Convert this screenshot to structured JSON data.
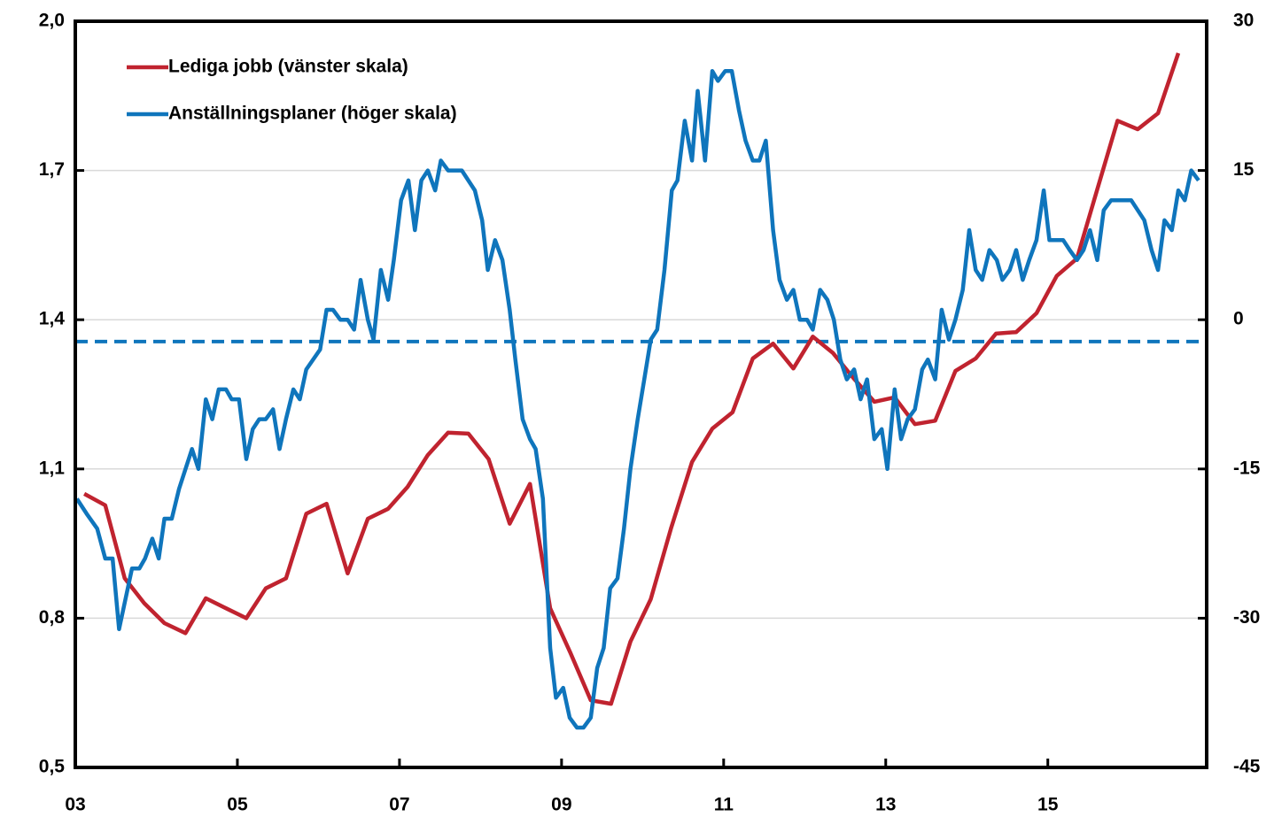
{
  "chart_data": {
    "type": "line",
    "series": [
      {
        "name": "Lediga jobb (vänster skala)",
        "color": "#c0232f",
        "axis": "y",
        "x": [
          2003.11,
          2003.37,
          2003.61,
          2003.85,
          2004.1,
          2004.36,
          2004.61,
          2004.86,
          2005.11,
          2005.35,
          2005.6,
          2005.85,
          2006.1,
          2006.36,
          2006.61,
          2006.86,
          2007.1,
          2007.35,
          2007.6,
          2007.85,
          2008.1,
          2008.36,
          2008.61,
          2008.86,
          2009.11,
          2009.36,
          2009.61,
          2009.85,
          2010.1,
          2010.35,
          2010.61,
          2010.86,
          2011.11,
          2011.36,
          2011.61,
          2011.86,
          2012.1,
          2012.35,
          2012.6,
          2012.86,
          2013.11,
          2013.36,
          2013.61,
          2013.86,
          2014.11,
          2014.36,
          2014.61,
          2014.86,
          2015.11,
          2015.36,
          2015.61,
          2015.86,
          2016.11,
          2016.36,
          2016.61
        ],
        "values": [
          1.05,
          1.027,
          0.88,
          0.83,
          0.79,
          0.77,
          0.84,
          0.82,
          0.8,
          0.86,
          0.88,
          1.01,
          1.03,
          0.89,
          1.0,
          1.02,
          1.064,
          1.128,
          1.173,
          1.171,
          1.12,
          0.99,
          1.07,
          0.82,
          0.73,
          0.635,
          0.628,
          0.753,
          0.838,
          0.98,
          1.114,
          1.181,
          1.214,
          1.322,
          1.352,
          1.302,
          1.366,
          1.333,
          1.283,
          1.235,
          1.244,
          1.19,
          1.197,
          1.297,
          1.322,
          1.372,
          1.375,
          1.413,
          1.488,
          1.523,
          1.662,
          1.8,
          1.783,
          1.815,
          1.936
        ]
      },
      {
        "name": "Anställningsplaner (höger skala)",
        "color": "#0f75bc",
        "axis": "y2",
        "x": [
          2003.02,
          2003.14,
          2003.27,
          2003.37,
          2003.46,
          2003.54,
          2003.7,
          2003.79,
          2003.86,
          2003.95,
          2004.03,
          2004.1,
          2004.19,
          2004.28,
          2004.44,
          2004.52,
          2004.61,
          2004.69,
          2004.77,
          2004.86,
          2004.93,
          2005.02,
          2005.11,
          2005.19,
          2005.27,
          2005.35,
          2005.44,
          2005.52,
          2005.6,
          2005.69,
          2005.77,
          2005.85,
          2006.02,
          2006.1,
          2006.18,
          2006.27,
          2006.36,
          2006.44,
          2006.52,
          2006.61,
          2006.68,
          2006.77,
          2006.86,
          2006.93,
          2007.02,
          2007.11,
          2007.19,
          2007.27,
          2007.35,
          2007.44,
          2007.51,
          2007.6,
          2007.77,
          2007.93,
          2008.02,
          2008.09,
          2008.18,
          2008.27,
          2008.36,
          2008.43,
          2008.52,
          2008.61,
          2008.68,
          2008.77,
          2008.86,
          2008.93,
          2009.02,
          2009.1,
          2009.19,
          2009.27,
          2009.36,
          2009.44,
          2009.52,
          2009.6,
          2009.69,
          2009.77,
          2009.85,
          2009.94,
          2010.02,
          2010.1,
          2010.18,
          2010.27,
          2010.36,
          2010.43,
          2010.52,
          2010.61,
          2010.68,
          2010.77,
          2010.86,
          2010.93,
          2011.02,
          2011.1,
          2011.19,
          2011.27,
          2011.36,
          2011.44,
          2011.52,
          2011.61,
          2011.69,
          2011.78,
          2011.86,
          2011.94,
          2012.03,
          2012.1,
          2012.19,
          2012.28,
          2012.36,
          2012.44,
          2012.52,
          2012.61,
          2012.69,
          2012.77,
          2012.86,
          2012.95,
          2013.02,
          2013.11,
          2013.19,
          2013.27,
          2013.36,
          2013.45,
          2013.52,
          2013.61,
          2013.69,
          2013.78,
          2013.86,
          2013.95,
          2014.03,
          2014.11,
          2014.19,
          2014.28,
          2014.37,
          2014.44,
          2014.53,
          2014.61,
          2014.69,
          2014.77,
          2014.86,
          2014.95,
          2015.02,
          2015.19,
          2015.27,
          2015.36,
          2015.44,
          2015.52,
          2015.61,
          2015.69,
          2015.78,
          2016.03,
          2016.19,
          2016.28,
          2016.36,
          2016.44,
          2016.53,
          2016.61,
          2016.69,
          2016.77,
          2016.86
        ],
        "values": [
          -18,
          -19.5,
          -21,
          -24,
          -24,
          -31.1,
          -25,
          -25,
          -24,
          -22,
          -24,
          -20,
          -20,
          -17,
          -13,
          -15,
          -8,
          -10,
          -7,
          -7,
          -8,
          -8,
          -14,
          -11,
          -10,
          -10,
          -9,
          -13,
          -10,
          -7,
          -8,
          -5,
          -3,
          1,
          1,
          0,
          0,
          -1,
          4,
          0,
          -2,
          5,
          2,
          6,
          12,
          14,
          9,
          14,
          15,
          13,
          16,
          15,
          15,
          13,
          10,
          5,
          8,
          6,
          1,
          -4,
          -10,
          -12,
          -13,
          -18,
          -33,
          -38,
          -37,
          -40,
          -41,
          -41,
          -40,
          -35,
          -33,
          -27,
          -26,
          -21,
          -15,
          -10,
          -6,
          -2,
          -1,
          5,
          13,
          14,
          20,
          16,
          23,
          16,
          25,
          24,
          25,
          25,
          21,
          18,
          16,
          16,
          18,
          9,
          4,
          2,
          3,
          0,
          0,
          -1,
          3,
          2,
          0,
          -4,
          -6,
          -5,
          -8,
          -6,
          -12,
          -11,
          -15,
          -7,
          -12,
          -10,
          -9,
          -5,
          -4,
          -6,
          1,
          -2,
          0,
          3,
          9,
          5,
          4,
          7,
          6,
          4,
          5,
          7,
          4,
          6,
          8,
          13,
          8,
          8,
          7,
          6,
          7,
          9,
          6,
          11,
          12,
          12,
          10,
          7,
          5,
          10,
          9,
          13,
          12,
          15,
          14
        ]
      }
    ],
    "reference_line": {
      "value": -2.2,
      "axis": "y2",
      "color": "#0f75bc",
      "dashed": true
    },
    "xlim": [
      2003,
      2016.96
    ],
    "xticks": [
      {
        "value": 2003,
        "label": "03"
      },
      {
        "value": 2005,
        "label": "05"
      },
      {
        "value": 2007,
        "label": "07"
      },
      {
        "value": 2009,
        "label": "09"
      },
      {
        "value": 2011,
        "label": "11"
      },
      {
        "value": 2013,
        "label": "13"
      },
      {
        "value": 2015,
        "label": "15"
      }
    ],
    "ylim": [
      0.5,
      2.0
    ],
    "yticks": [
      {
        "value": 0.5,
        "label": "0,5"
      },
      {
        "value": 0.8,
        "label": "0,8"
      },
      {
        "value": 1.1,
        "label": "1,1"
      },
      {
        "value": 1.4,
        "label": "1,4"
      },
      {
        "value": 1.7,
        "label": "1,7"
      },
      {
        "value": 2.0,
        "label": "2,0"
      }
    ],
    "y2lim": [
      -45,
      30
    ],
    "y2ticks": [
      -45,
      -30,
      -15,
      0,
      15,
      30
    ],
    "grid": true,
    "legend": "upper left"
  }
}
